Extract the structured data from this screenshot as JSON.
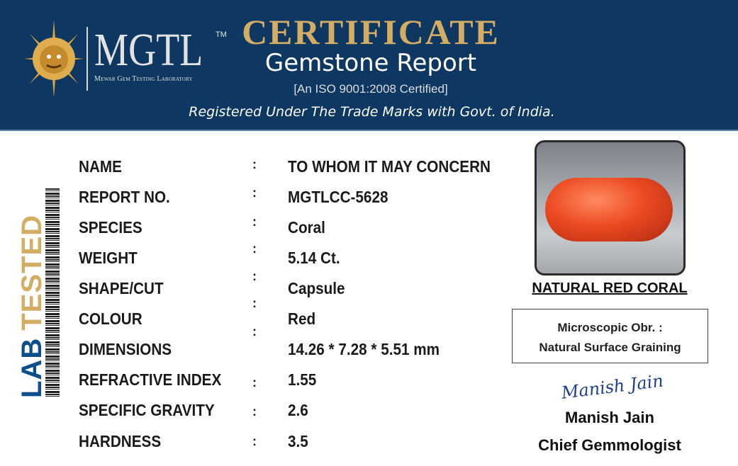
{
  "header": {
    "logo_text": "MGTL",
    "trademark": "TM",
    "lab_name": "Mewar Gem Testing Laboratory",
    "title": "CERTIFICATE",
    "subtitle": "Gemstone Report",
    "iso": "[An ISO 9001:2008 Certified]",
    "registered": "Registered Under The Trade Marks with Govt. of India."
  },
  "side": {
    "lab": "LAB",
    "tested": "TESTED"
  },
  "fields": [
    {
      "label": "NAME",
      "value": "TO WHOM IT MAY CONCERN"
    },
    {
      "label": "REPORT NO.",
      "value": "MGTLCC-5628"
    },
    {
      "label": "SPECIES",
      "value": "Coral"
    },
    {
      "label": "WEIGHT",
      "value": "5.14 Ct."
    },
    {
      "label": "SHAPE/CUT",
      "value": "Capsule"
    },
    {
      "label": "COLOUR",
      "value": "Red"
    },
    {
      "label": "DIMENSIONS",
      "value": "14.26 * 7.28 * 5.51 mm"
    },
    {
      "label": "REFRACTIVE INDEX",
      "value": "1.55"
    },
    {
      "label": "SPECIFIC GRAVITY",
      "value": "2.6"
    },
    {
      "label": "HARDNESS",
      "value": "3.5"
    }
  ],
  "separator": ":",
  "gem": {
    "caption": "NATURAL RED CORAL",
    "micro_label": "Microscopic Obr. :",
    "micro_value": "Natural Surface Graining"
  },
  "signatory": {
    "signature": "Manish Jain",
    "name": "Manish Jain",
    "title": "Chief Gemmologist"
  },
  "colors": {
    "header_bg": "#0e3862",
    "gold": "#d4ad64",
    "blue": "#0d4f8a"
  }
}
